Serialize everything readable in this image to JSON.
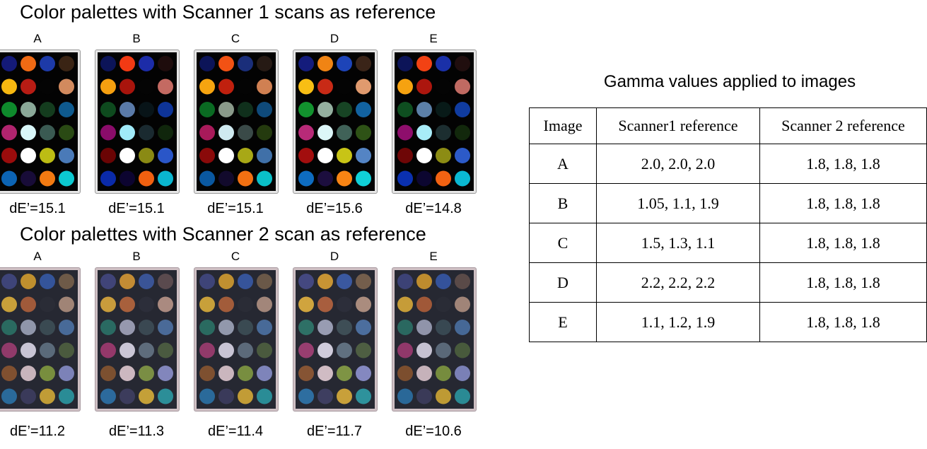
{
  "section1": {
    "title": "Color palettes with Scanner 1 scans as reference",
    "cards": [
      {
        "letter": "A",
        "de": "dE’=15.1"
      },
      {
        "letter": "B",
        "de": "dE’=15.1"
      },
      {
        "letter": "C",
        "de": "dE’=15.1"
      },
      {
        "letter": "D",
        "de": "dE’=15.6"
      },
      {
        "letter": "E",
        "de": "dE’=14.8"
      }
    ],
    "palettes": [
      [
        "#141a78",
        "#f06a14",
        "#1d3aa8",
        "#3a2414",
        "#f6b810",
        "#b71c14",
        "#040404",
        "#d28a5e",
        "#0e8a2c",
        "#8aa898",
        "#143c1e",
        "#0f5a8e",
        "#b0246e",
        "#d8f6f8",
        "#3a5a52",
        "#2a4a14",
        "#9a0c0c",
        "#ffffff",
        "#bcbc14",
        "#4a7ab8",
        "#0c64b4",
        "#180c38",
        "#f27a12",
        "#0cc8d0"
      ],
      [
        "#0c1458",
        "#f23a14",
        "#1c2ca8",
        "#1e0c0c",
        "#f6a010",
        "#a8140c",
        "#040404",
        "#c46a62",
        "#0e4a1e",
        "#5a7aa8",
        "#081418",
        "#0e3498",
        "#8a0c6a",
        "#a0eaf8",
        "#1a2a30",
        "#10260c",
        "#6a0404",
        "#ffffff",
        "#8a8a14",
        "#2a56c8",
        "#0a2aa8",
        "#0c0430",
        "#f06010",
        "#0ab6d0"
      ],
      [
        "#0c1458",
        "#f25214",
        "#1a2e7a",
        "#261a14",
        "#f6a410",
        "#c0200e",
        "#040404",
        "#d08052",
        "#0a6a22",
        "#8a9a8a",
        "#10301c",
        "#0f4a7a",
        "#a81a5a",
        "#cfeaf0",
        "#3a4a48",
        "#243a0e",
        "#8a0a0a",
        "#ffffff",
        "#a8a816",
        "#4070a8",
        "#0a58a0",
        "#120a2c",
        "#f27012",
        "#0ac0c8"
      ],
      [
        "#141c7c",
        "#f08414",
        "#1d44b8",
        "#3a2418",
        "#f8be14",
        "#c82a16",
        "#040404",
        "#e09a6e",
        "#12922e",
        "#94b0a0",
        "#174424",
        "#1262a0",
        "#b82a78",
        "#dcf6f8",
        "#406258",
        "#2e5216",
        "#a20e0e",
        "#ffffff",
        "#c8c416",
        "#5484c4",
        "#0e6cc0",
        "#1c0e3e",
        "#f88414",
        "#10d0d8"
      ],
      [
        "#0c1458",
        "#f24214",
        "#1a30a8",
        "#200e0e",
        "#f6a210",
        "#ac160e",
        "#040404",
        "#c06a62",
        "#0e4e20",
        "#5c80a8",
        "#081a18",
        "#103ca0",
        "#8e0e6c",
        "#a8ecf8",
        "#1c2e30",
        "#12280c",
        "#6e0606",
        "#ffffff",
        "#8c8c14",
        "#2c5ac8",
        "#0a30b0",
        "#0c0630",
        "#f26212",
        "#0ab8d2"
      ]
    ]
  },
  "section2": {
    "title": "Color palettes with Scanner 2 scan as reference",
    "cards": [
      {
        "letter": "A",
        "de": "dE’=11.2"
      },
      {
        "letter": "B",
        "de": "dE’=11.3"
      },
      {
        "letter": "C",
        "de": "dE’=11.4"
      },
      {
        "letter": "D",
        "de": "dE’=11.7"
      },
      {
        "letter": "E",
        "de": "dE’=10.6"
      }
    ],
    "palettes": [
      [
        "#3e4478",
        "#c0902e",
        "#34549a",
        "#6e5a48",
        "#c8a03a",
        "#a05a3a",
        "#2a2c36",
        "#a08476",
        "#2a6a60",
        "#9096aa",
        "#3a4a52",
        "#486a98",
        "#903a6a",
        "#c8c4d4",
        "#5a6a7a",
        "#4a5a3e",
        "#805030",
        "#c8b4bc",
        "#788e3e",
        "#7c82b8",
        "#2a6a9a",
        "#3a3a5a",
        "#c09c36",
        "#2a8c96"
      ],
      [
        "#404478",
        "#c48c34",
        "#3a5496",
        "#5a4a4e",
        "#c89c3c",
        "#a8603c",
        "#2c2e3a",
        "#aa8a80",
        "#2a6a62",
        "#9698ae",
        "#3a4852",
        "#4a6a98",
        "#94386a",
        "#cac6d6",
        "#5e6c7c",
        "#4a5a40",
        "#7c5030",
        "#ccb8c0",
        "#7a8e44",
        "#8286bc",
        "#2c6a9c",
        "#3c3c5c",
        "#c4a038",
        "#2c8e98"
      ],
      [
        "#3e4478",
        "#c09030",
        "#36549a",
        "#6a5848",
        "#c8a03a",
        "#a25c3a",
        "#2a2c36",
        "#a2867a",
        "#2a6a60",
        "#9298ac",
        "#3a4a52",
        "#486a98",
        "#923a6a",
        "#c8c4d4",
        "#5c6a7a",
        "#4a5a3e",
        "#7e5030",
        "#cab6be",
        "#788e40",
        "#7e84ba",
        "#2a6a9a",
        "#3a3a5a",
        "#c29c36",
        "#2a8c96"
      ],
      [
        "#444880",
        "#c89434",
        "#3a58a0",
        "#745e4c",
        "#d0a43e",
        "#a85e3e",
        "#2c2e3a",
        "#aa8c7e",
        "#2e7066",
        "#989cb2",
        "#3e4e56",
        "#4c6e9e",
        "#983e70",
        "#d0ccdc",
        "#607080",
        "#4e5e42",
        "#865434",
        "#d0bcc4",
        "#7e9444",
        "#8488c0",
        "#2e6ea0",
        "#3e3e60",
        "#c8a03a",
        "#2e929c"
      ],
      [
        "#3c4276",
        "#be8c2e",
        "#34529a",
        "#5a4a48",
        "#c69c38",
        "#a05838",
        "#2a2c36",
        "#a08478",
        "#2a6860",
        "#9094aa",
        "#384852",
        "#466896",
        "#90386a",
        "#c6c2d2",
        "#5a6878",
        "#485a3c",
        "#7c4e2e",
        "#c6b2ba",
        "#768c3e",
        "#7a80b6",
        "#2a6898",
        "#3a3a58",
        "#be9a34",
        "#2a8a94"
      ]
    ]
  },
  "table": {
    "title": "Gamma values applied to images",
    "headers": [
      "Image",
      "Scanner1 reference",
      "Scanner 2 reference"
    ],
    "rows": [
      [
        "A",
        "2.0, 2.0, 2.0",
        "1.8, 1.8, 1.8"
      ],
      [
        "B",
        "1.05, 1.1, 1.9",
        "1.8, 1.8, 1.8"
      ],
      [
        "C",
        "1.5, 1.3, 1.1",
        "1.8, 1.8, 1.8"
      ],
      [
        "D",
        "2.2, 2.2, 2.2",
        "1.8, 1.8, 1.8"
      ],
      [
        "E",
        "1.1, 1.2, 1.9",
        "1.8, 1.8, 1.8"
      ]
    ]
  }
}
